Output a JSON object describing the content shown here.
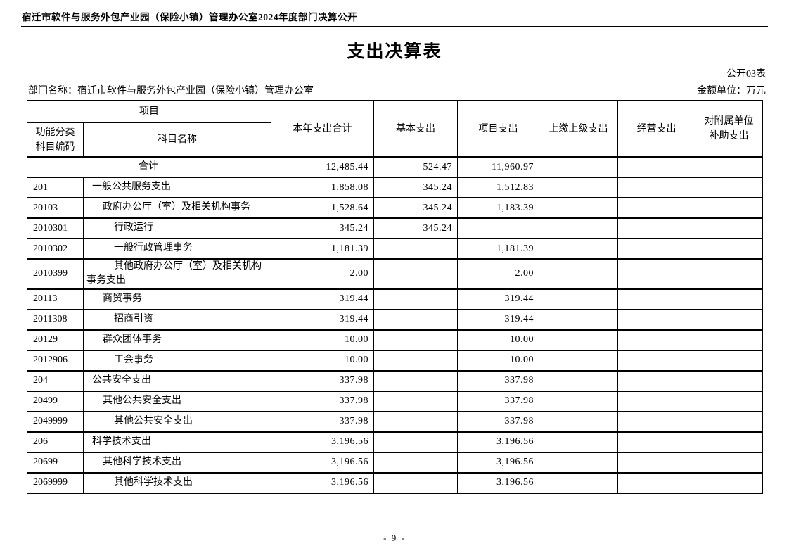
{
  "page": {
    "doc_header": "宿迁市软件与服务外包产业园（保险小镇）管理办公室2024年度部门决算公开",
    "title": "支出决算表",
    "sheet_label": "公开03表",
    "department": "部门名称：宿迁市软件与服务外包产业园（保险小镇）管理办公室",
    "unit": "金额单位：万元",
    "page_number": "- 9 -"
  },
  "table": {
    "header": {
      "project_group": "项目",
      "code_lines": [
        "功能分类",
        "科目编码"
      ],
      "subject_name": "科目名称",
      "year_total": "本年支出合计",
      "basic": "基本支出",
      "project_exp": "项目支出",
      "upper_level": "上缴上级支出",
      "operating": "经营支出",
      "subsidy_lines": [
        "对附属单位",
        "补助支出"
      ]
    },
    "rows": [
      {
        "code": "",
        "name": "合计",
        "indent": 0,
        "merged": true,
        "total": "12,485.44",
        "basic": "524.47",
        "project": "11,960.97",
        "upper": "",
        "operating": "",
        "subsidy": ""
      },
      {
        "code": "201",
        "name": "一般公共服务支出",
        "indent": 1,
        "merged": false,
        "total": "1,858.08",
        "basic": "345.24",
        "project": "1,512.83",
        "upper": "",
        "operating": "",
        "subsidy": ""
      },
      {
        "code": "20103",
        "name": "政府办公厅（室）及相关机构事务",
        "indent": 2,
        "merged": false,
        "total": "1,528.64",
        "basic": "345.24",
        "project": "1,183.39",
        "upper": "",
        "operating": "",
        "subsidy": ""
      },
      {
        "code": "2010301",
        "name": "行政运行",
        "indent": 3,
        "merged": false,
        "total": "345.24",
        "basic": "345.24",
        "project": "",
        "upper": "",
        "operating": "",
        "subsidy": ""
      },
      {
        "code": "2010302",
        "name": "一般行政管理事务",
        "indent": 3,
        "merged": false,
        "total": "1,181.39",
        "basic": "",
        "project": "1,181.39",
        "upper": "",
        "operating": "",
        "subsidy": ""
      },
      {
        "code": "2010399",
        "name": "其他政府办公厅（室）及相关机构事务支出",
        "indent": 3,
        "merged": false,
        "total": "2.00",
        "basic": "",
        "project": "2.00",
        "upper": "",
        "operating": "",
        "subsidy": ""
      },
      {
        "code": "20113",
        "name": "商贸事务",
        "indent": 2,
        "merged": false,
        "total": "319.44",
        "basic": "",
        "project": "319.44",
        "upper": "",
        "operating": "",
        "subsidy": ""
      },
      {
        "code": "2011308",
        "name": "招商引资",
        "indent": 3,
        "merged": false,
        "total": "319.44",
        "basic": "",
        "project": "319.44",
        "upper": "",
        "operating": "",
        "subsidy": ""
      },
      {
        "code": "20129",
        "name": "群众团体事务",
        "indent": 2,
        "merged": false,
        "total": "10.00",
        "basic": "",
        "project": "10.00",
        "upper": "",
        "operating": "",
        "subsidy": ""
      },
      {
        "code": "2012906",
        "name": "工会事务",
        "indent": 3,
        "merged": false,
        "total": "10.00",
        "basic": "",
        "project": "10.00",
        "upper": "",
        "operating": "",
        "subsidy": ""
      },
      {
        "code": "204",
        "name": "公共安全支出",
        "indent": 1,
        "merged": false,
        "total": "337.98",
        "basic": "",
        "project": "337.98",
        "upper": "",
        "operating": "",
        "subsidy": ""
      },
      {
        "code": "20499",
        "name": "其他公共安全支出",
        "indent": 2,
        "merged": false,
        "total": "337.98",
        "basic": "",
        "project": "337.98",
        "upper": "",
        "operating": "",
        "subsidy": ""
      },
      {
        "code": "2049999",
        "name": "其他公共安全支出",
        "indent": 3,
        "merged": false,
        "total": "337.98",
        "basic": "",
        "project": "337.98",
        "upper": "",
        "operating": "",
        "subsidy": ""
      },
      {
        "code": "206",
        "name": "科学技术支出",
        "indent": 1,
        "merged": false,
        "total": "3,196.56",
        "basic": "",
        "project": "3,196.56",
        "upper": "",
        "operating": "",
        "subsidy": ""
      },
      {
        "code": "20699",
        "name": "其他科学技术支出",
        "indent": 2,
        "merged": false,
        "total": "3,196.56",
        "basic": "",
        "project": "3,196.56",
        "upper": "",
        "operating": "",
        "subsidy": ""
      },
      {
        "code": "2069999",
        "name": "其他科学技术支出",
        "indent": 3,
        "merged": false,
        "total": "3,196.56",
        "basic": "",
        "project": "3,196.56",
        "upper": "",
        "operating": "",
        "subsidy": ""
      }
    ]
  }
}
